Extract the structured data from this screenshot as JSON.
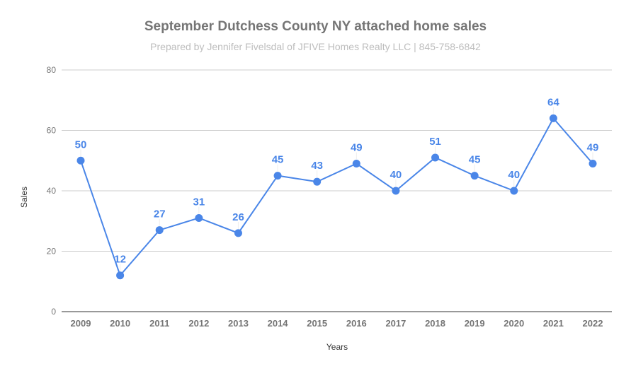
{
  "chart_data": {
    "type": "line",
    "title": "September Dutchess County NY attached home sales",
    "subtitle": "Prepared by Jennifer Fivelsdal of JFIVE Homes Realty LLC | 845-758-6842",
    "xlabel": "Years",
    "ylabel": "Sales",
    "categories": [
      "2009",
      "2010",
      "2011",
      "2012",
      "2013",
      "2014",
      "2015",
      "2016",
      "2017",
      "2018",
      "2019",
      "2020",
      "2021",
      "2022"
    ],
    "series": [
      {
        "name": "Sales",
        "color": "#4a86e8",
        "values": [
          50,
          12,
          27,
          31,
          26,
          45,
          43,
          49,
          40,
          51,
          45,
          40,
          64,
          49
        ]
      }
    ],
    "ylim": [
      0,
      80
    ],
    "yticks": [
      0,
      20,
      40,
      60,
      80
    ],
    "grid": true,
    "legend": "none",
    "data_labels": true
  }
}
